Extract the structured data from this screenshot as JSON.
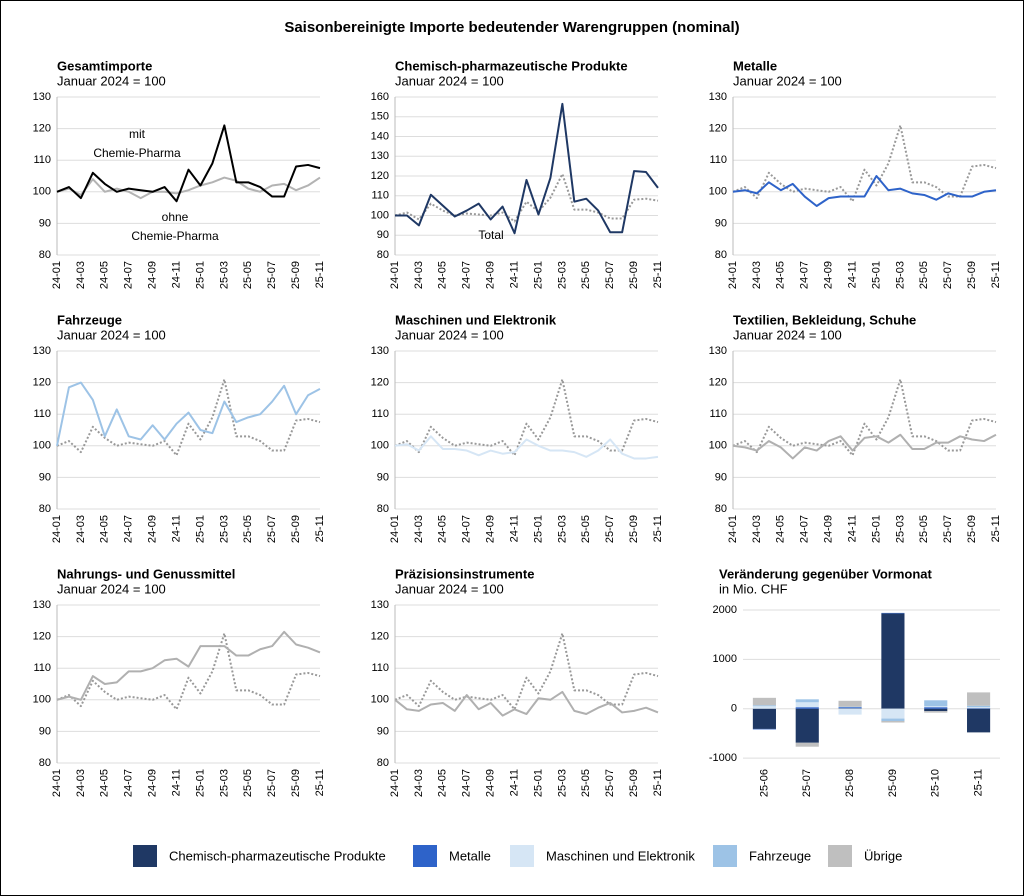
{
  "title": "Saisonbereinigte Importe bedeutender Warengruppen (nominal)",
  "chart_data": [
    {
      "type": "line",
      "title": "Gesamtimporte",
      "subtitle": "Januar 2024 = 100",
      "categories": [
        "24-01",
        null,
        "24-03",
        null,
        "24-05",
        null,
        "24-07",
        null,
        "24-09",
        null,
        "24-11",
        null,
        "25-01",
        null,
        "25-03",
        null,
        "25-05",
        null,
        "25-07",
        null,
        "25-09",
        null,
        "25-11"
      ],
      "series": [
        {
          "color": "#b3b3b3",
          "values": [
            100,
            101,
            99,
            104,
            100,
            101,
            100,
            98,
            100,
            100,
            99.5,
            100.5,
            102,
            103,
            104.5,
            103.5,
            101,
            100,
            102,
            102.5,
            100.5,
            102,
            104.5
          ]
        },
        {
          "color": "#000000",
          "values": [
            100,
            101.5,
            98,
            106,
            102.5,
            100,
            101,
            100.5,
            100,
            101.5,
            97,
            107,
            102,
            109,
            121,
            103,
            103,
            101.5,
            98.5,
            98.5,
            108,
            108.5,
            107.5
          ]
        }
      ],
      "annotations": [
        {
          "text": [
            "mit",
            "Chemie-Pharma"
          ],
          "color": "#000000"
        },
        {
          "text": [
            "ohne",
            "Chemie-Pharma"
          ],
          "color": "#a6a6a6"
        }
      ],
      "ylim": [
        80,
        130
      ],
      "yticks": [
        80,
        90,
        100,
        110,
        120,
        130
      ],
      "grid": true
    },
    {
      "type": "line",
      "title": "Chemisch-pharmazeutische Produkte",
      "subtitle": "Januar 2024 = 100",
      "categories": [
        "24-01",
        null,
        "24-03",
        null,
        "24-05",
        null,
        "24-07",
        null,
        "24-09",
        null,
        "24-11",
        null,
        "25-01",
        null,
        "25-03",
        null,
        "25-05",
        null,
        "25-07",
        null,
        "25-09",
        null,
        "25-11"
      ],
      "series": [
        {
          "color": "#999999",
          "dash": "dotted",
          "values": [
            100,
            101.5,
            98,
            106,
            102.5,
            100,
            101,
            100.5,
            100,
            101.5,
            97,
            107,
            102,
            109,
            121,
            103,
            103,
            101.5,
            98.5,
            98.5,
            108,
            108.5,
            107.5
          ]
        },
        {
          "color": "#1f3864",
          "values": [
            100,
            100,
            95,
            110.5,
            105,
            99.5,
            102.5,
            106,
            98,
            104.5,
            91,
            118,
            100.5,
            119,
            156.5,
            107,
            108.5,
            102.5,
            91.5,
            91.5,
            122.5,
            122,
            114
          ]
        }
      ],
      "annotations": [
        {
          "text": [
            "Total"
          ],
          "color": "#a6a6a6"
        }
      ],
      "ylim": [
        80,
        160
      ],
      "yticks": [
        80,
        90,
        100,
        110,
        120,
        130,
        140,
        150,
        160
      ],
      "grid": true
    },
    {
      "type": "line",
      "title": "Metalle",
      "subtitle": "Januar 2024 = 100",
      "categories": [
        "24-01",
        null,
        "24-03",
        null,
        "24-05",
        null,
        "24-07",
        null,
        "24-09",
        null,
        "24-11",
        null,
        "25-01",
        null,
        "25-03",
        null,
        "25-05",
        null,
        "25-07",
        null,
        "25-09",
        null,
        "25-11"
      ],
      "series": [
        {
          "color": "#999999",
          "dash": "dotted",
          "values": [
            100,
            101.5,
            98,
            106,
            102.5,
            100,
            101,
            100.5,
            100,
            101.5,
            97,
            107,
            102,
            109,
            121,
            103,
            103,
            101.5,
            98.5,
            98.5,
            108,
            108.5,
            107.5
          ]
        },
        {
          "color": "#2e63c9",
          "values": [
            100,
            100.5,
            99.5,
            103,
            100.5,
            102.5,
            98.5,
            95.5,
            98,
            98.5,
            98.5,
            98.5,
            105,
            100.5,
            101,
            99.5,
            99,
            97.5,
            99.5,
            98.5,
            98.5,
            100,
            100.5
          ]
        }
      ],
      "ylim": [
        80,
        130
      ],
      "yticks": [
        80,
        90,
        100,
        110,
        120,
        130
      ],
      "grid": true
    },
    {
      "type": "line",
      "title": "Fahrzeuge",
      "subtitle": "Januar 2024 = 100",
      "categories": [
        "24-01",
        null,
        "24-03",
        null,
        "24-05",
        null,
        "24-07",
        null,
        "24-09",
        null,
        "24-11",
        null,
        "25-01",
        null,
        "25-03",
        null,
        "25-05",
        null,
        "25-07",
        null,
        "25-09",
        null,
        "25-11"
      ],
      "series": [
        {
          "color": "#999999",
          "dash": "dotted",
          "values": [
            100,
            101.5,
            98,
            106,
            102.5,
            100,
            101,
            100.5,
            100,
            101.5,
            97,
            107,
            102,
            109,
            121,
            103,
            103,
            101.5,
            98.5,
            98.5,
            108,
            108.5,
            107.5
          ]
        },
        {
          "color": "#9dc3e6",
          "values": [
            100,
            118.5,
            120,
            114.5,
            103,
            111.5,
            103,
            102,
            106.5,
            102,
            107,
            110.5,
            105,
            104,
            114,
            107.5,
            109,
            110,
            114,
            119,
            110,
            116,
            118
          ]
        }
      ],
      "ylim": [
        80,
        130
      ],
      "yticks": [
        80,
        90,
        100,
        110,
        120,
        130
      ],
      "grid": true
    },
    {
      "type": "line",
      "title": "Maschinen und Elektronik",
      "subtitle": "Januar 2024 = 100",
      "categories": [
        "24-01",
        null,
        "24-03",
        null,
        "24-05",
        null,
        "24-07",
        null,
        "24-09",
        null,
        "24-11",
        null,
        "25-01",
        null,
        "25-03",
        null,
        "25-05",
        null,
        "25-07",
        null,
        "25-09",
        null,
        "25-11"
      ],
      "series": [
        {
          "color": "#999999",
          "dash": "dotted",
          "values": [
            100,
            101.5,
            98,
            106,
            102.5,
            100,
            101,
            100.5,
            100,
            101.5,
            97,
            107,
            102,
            109,
            121,
            103,
            103,
            101.5,
            98.5,
            98.5,
            108,
            108.5,
            107.5
          ]
        },
        {
          "color": "#d6e6f5",
          "values": [
            100,
            100.5,
            98.5,
            103,
            99,
            99,
            98.5,
            97,
            98.5,
            97.5,
            98,
            102,
            100,
            98.5,
            98.5,
            98,
            96.5,
            98.5,
            102,
            97.5,
            96,
            96,
            96.5
          ]
        }
      ],
      "ylim": [
        80,
        130
      ],
      "yticks": [
        80,
        90,
        100,
        110,
        120,
        130
      ],
      "grid": true
    },
    {
      "type": "line",
      "title": "Textilien, Bekleidung, Schuhe",
      "subtitle": "Januar 2024 = 100",
      "categories": [
        "24-01",
        null,
        "24-03",
        null,
        "24-05",
        null,
        "24-07",
        null,
        "24-09",
        null,
        "24-11",
        null,
        "25-01",
        null,
        "25-03",
        null,
        "25-05",
        null,
        "25-07",
        null,
        "25-09",
        null,
        "25-11"
      ],
      "series": [
        {
          "color": "#999999",
          "dash": "dotted",
          "values": [
            100,
            101.5,
            98,
            106,
            102.5,
            100,
            101,
            100.5,
            100,
            101.5,
            97,
            107,
            102,
            109,
            121,
            103,
            103,
            101.5,
            98.5,
            98.5,
            108,
            108.5,
            107.5
          ]
        },
        {
          "color": "#b0b0b0",
          "values": [
            100,
            99.5,
            98.5,
            101.5,
            99.5,
            96,
            99.5,
            98.5,
            101.5,
            103,
            98.5,
            102.5,
            103,
            101,
            103.5,
            99,
            99,
            101,
            101,
            103,
            102,
            101.5,
            103.5
          ]
        }
      ],
      "ylim": [
        80,
        130
      ],
      "yticks": [
        80,
        90,
        100,
        110,
        120,
        130
      ],
      "grid": true
    },
    {
      "type": "line",
      "title": "Nahrungs- und Genussmittel",
      "subtitle": "Januar 2024 = 100",
      "categories": [
        "24-01",
        null,
        "24-03",
        null,
        "24-05",
        null,
        "24-07",
        null,
        "24-09",
        null,
        "24-11",
        null,
        "25-01",
        null,
        "25-03",
        null,
        "25-05",
        null,
        "25-07",
        null,
        "25-09",
        null,
        "25-11"
      ],
      "series": [
        {
          "color": "#999999",
          "dash": "dotted",
          "values": [
            100,
            101.5,
            98,
            106,
            102.5,
            100,
            101,
            100.5,
            100,
            101.5,
            97,
            107,
            102,
            109,
            121,
            103,
            103,
            101.5,
            98.5,
            98.5,
            108,
            108.5,
            107.5
          ]
        },
        {
          "color": "#b0b0b0",
          "values": [
            100,
            101,
            100,
            107.5,
            105,
            105.5,
            109,
            109,
            110,
            112.5,
            113,
            110.5,
            117,
            117,
            117,
            114,
            114,
            116,
            117,
            121.5,
            117.5,
            116.5,
            115
          ]
        }
      ],
      "ylim": [
        80,
        130
      ],
      "yticks": [
        80,
        90,
        100,
        110,
        120,
        130
      ],
      "grid": true
    },
    {
      "type": "line",
      "title": "Präzisionsinstrumente",
      "subtitle": "Januar 2024 = 100",
      "categories": [
        "24-01",
        null,
        "24-03",
        null,
        "24-05",
        null,
        "24-07",
        null,
        "24-09",
        null,
        "24-11",
        null,
        "25-01",
        null,
        "25-03",
        null,
        "25-05",
        null,
        "25-07",
        null,
        "25-09",
        null,
        "25-11"
      ],
      "series": [
        {
          "color": "#999999",
          "dash": "dotted",
          "values": [
            100,
            101.5,
            98,
            106,
            102.5,
            100,
            101,
            100.5,
            100,
            101.5,
            97,
            107,
            102,
            109,
            121,
            103,
            103,
            101.5,
            98.5,
            98.5,
            108,
            108.5,
            107.5
          ]
        },
        {
          "color": "#b0b0b0",
          "values": [
            100,
            97,
            96.5,
            98.5,
            99,
            96.5,
            101.5,
            97,
            99,
            95,
            97,
            95.5,
            100.5,
            100,
            102.5,
            96.5,
            95.5,
            97.5,
            99,
            96,
            96.5,
            97.5,
            96
          ]
        }
      ],
      "ylim": [
        80,
        130
      ],
      "yticks": [
        80,
        90,
        100,
        110,
        120,
        130
      ],
      "grid": true
    },
    {
      "type": "stacked_bar",
      "title": "Veränderung gegenüber Vormonat",
      "subtitle": "in Mio. CHF",
      "categories": [
        "25-06",
        "25-07",
        "25-08",
        "25-09",
        "25-10",
        "25-11"
      ],
      "series": [
        {
          "name": "Chemisch-pharmazeutische Produkte",
          "color": "#1f3864",
          "values": [
            -410,
            -690,
            10,
            1930,
            -50,
            -480
          ]
        },
        {
          "name": "Metalle",
          "color": "#2e63c9",
          "values": [
            -10,
            30,
            20,
            10,
            30,
            10
          ]
        },
        {
          "name": "Maschinen und Elektronik",
          "color": "#d6e6f5",
          "values": [
            50,
            100,
            -120,
            -200,
            20,
            20
          ]
        },
        {
          "name": "Fahrzeuge",
          "color": "#9dc3e6",
          "values": [
            20,
            60,
            10,
            -50,
            120,
            30
          ]
        },
        {
          "name": "Übrige",
          "color": "#bfbfbf",
          "values": [
            150,
            -80,
            120,
            -30,
            -30,
            270
          ]
        }
      ],
      "ylim": [
        -1100,
        2100
      ],
      "yticks": [
        -1000,
        0,
        1000,
        2000
      ],
      "grid": true
    }
  ]
}
